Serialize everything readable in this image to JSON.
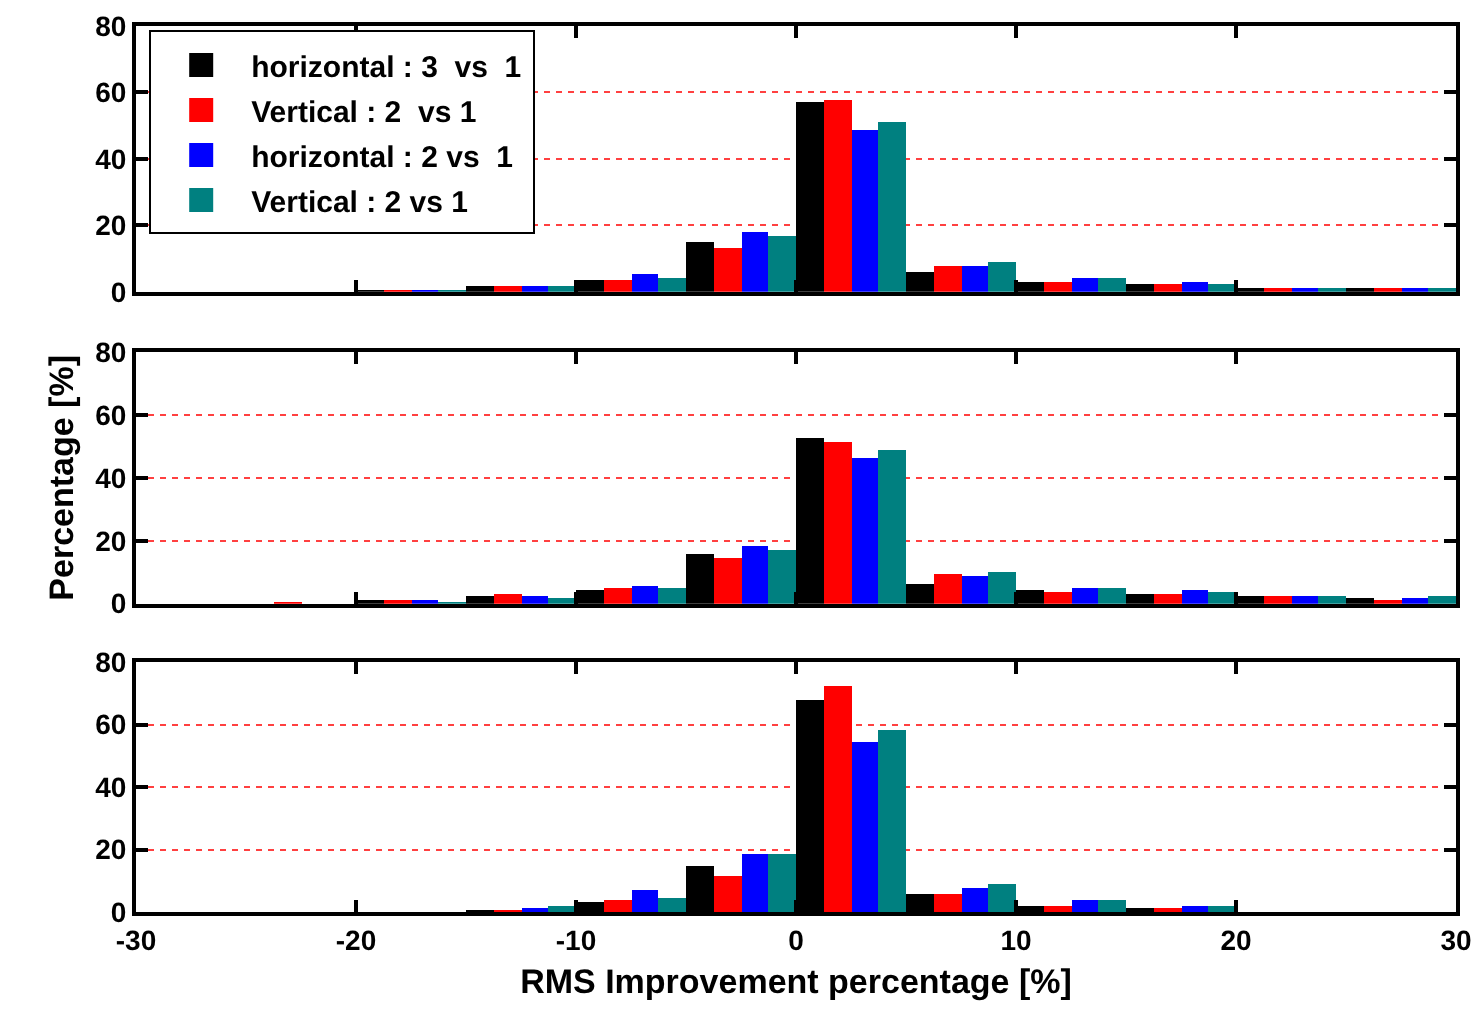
{
  "chart_data": [
    {
      "type": "bar",
      "x": [
        -22.5,
        -17.5,
        -12.5,
        -7.5,
        -2.5,
        2.5,
        7.5,
        12.5,
        17.5,
        22.5,
        27.5
      ],
      "xlim": [
        -30,
        30
      ],
      "xticks": [
        -30,
        -20,
        -10,
        0,
        10,
        20,
        30
      ],
      "ylim": [
        0,
        80
      ],
      "yticks": [
        0,
        20,
        40,
        60,
        80
      ],
      "grid": "y",
      "legend": "top left",
      "tick_labels": "y",
      "series": [
        {
          "name": "horizontal : 3  vs  1",
          "color": "#000000",
          "values": [
            0,
            0.3,
            1.5,
            3.3,
            15,
            57.3,
            6,
            3,
            2.2,
            1.1,
            1.1
          ]
        },
        {
          "name": "Vertical : 2  vs 1",
          "color": "#ff0000",
          "values": [
            0,
            0.5,
            1.5,
            3.8,
            13.4,
            58,
            7.7,
            2.7,
            2.2,
            1.1,
            0.8
          ]
        },
        {
          "name": "horizontal : 2 vs  1",
          "color": "#0000ff",
          "values": [
            0,
            0.3,
            1.5,
            5.5,
            17.8,
            48.5,
            7.9,
            4.1,
            2.7,
            1.4,
            1.4
          ]
        },
        {
          "name": "Vertical : 2 vs 1",
          "color": "#008080",
          "values": [
            0,
            0.3,
            1.5,
            4.4,
            17,
            51.2,
            9,
            4.4,
            2.5,
            1.1,
            1.1
          ]
        }
      ]
    },
    {
      "type": "bar",
      "x": [
        -22.5,
        -17.5,
        -12.5,
        -7.5,
        -2.5,
        2.5,
        7.5,
        12.5,
        17.5,
        22.5,
        27.5
      ],
      "xlim": [
        -30,
        30
      ],
      "xticks": [
        -30,
        -20,
        -10,
        0,
        10,
        20,
        30
      ],
      "ylim": [
        0,
        80
      ],
      "yticks": [
        0,
        20,
        40,
        60,
        80
      ],
      "grid": "y",
      "tick_labels": "y",
      "ylabel": "Percentage [%]",
      "series": [
        {
          "color": "#000000",
          "values": [
            0,
            0.8,
            2.2,
            4.4,
            16,
            52.8,
            6.5,
            4.4,
            3.3,
            2.2,
            1.6
          ]
        },
        {
          "color": "#ff0000",
          "values": [
            0.5,
            0.8,
            3,
            4.9,
            14.7,
            51.4,
            9.3,
            3.5,
            3.3,
            2.2,
            1.4
          ]
        },
        {
          "color": "#0000ff",
          "values": [
            0,
            0.8,
            2.2,
            5.4,
            18.5,
            46.5,
            8.7,
            4.9,
            4.1,
            2.4,
            1.6
          ]
        },
        {
          "color": "#008080",
          "values": [
            0,
            0.3,
            1.6,
            4.9,
            16.9,
            48.7,
            9.8,
            5.2,
            3.5,
            2.2,
            2.2
          ]
        }
      ]
    },
    {
      "type": "bar",
      "x": [
        -22.5,
        -17.5,
        -12.5,
        -7.5,
        -2.5,
        2.5,
        7.5,
        12.5,
        17.5,
        22.5,
        27.5
      ],
      "xlim": [
        -30,
        30
      ],
      "xticks": [
        -30,
        -20,
        -10,
        0,
        10,
        20,
        30
      ],
      "ylim": [
        0,
        80
      ],
      "yticks": [
        0,
        20,
        40,
        60,
        80
      ],
      "grid": "y",
      "xlabel": "RMS Improvement percentage [%]",
      "series": [
        {
          "color": "#000000",
          "values": [
            0,
            0,
            0.3,
            3,
            14.5,
            67.7,
            5.5,
            1.9,
            1.1,
            0,
            0
          ]
        },
        {
          "color": "#ff0000",
          "values": [
            0,
            0,
            0.3,
            3.6,
            11.8,
            72.6,
            5.5,
            1.9,
            1.1,
            0,
            0
          ]
        },
        {
          "color": "#0000ff",
          "values": [
            0,
            0,
            1.4,
            6.8,
            18.4,
            54.2,
            7.4,
            3.8,
            1.9,
            0,
            0
          ]
        },
        {
          "color": "#008080",
          "values": [
            0,
            0,
            1.6,
            4.4,
            18.4,
            58.4,
            9,
            3.8,
            1.6,
            0,
            0
          ]
        }
      ]
    }
  ]
}
